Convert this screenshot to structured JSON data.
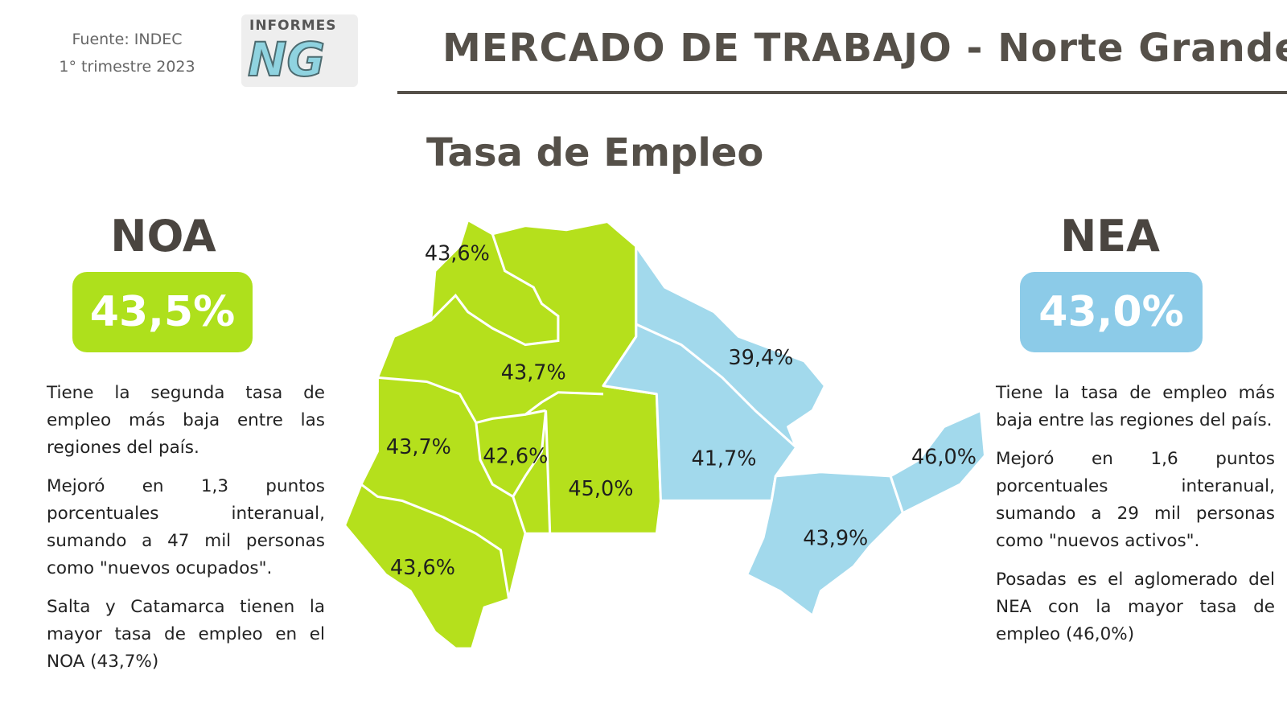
{
  "header": {
    "source": "Fuente: INDEC",
    "period": "1° trimestre 2023",
    "logo_text": "INFORMES",
    "logo_mark": "NG",
    "title": "MERCADO DE TRABAJO - Norte Grande"
  },
  "subtitle": "Tasa de Empleo",
  "noa": {
    "name": "NOA",
    "rate": "43,5%",
    "paragraphs": [
      "Tiene la segunda tasa de empleo más baja entre las regiones del país.",
      "Mejoró en 1,3 puntos porcentuales interanual, sumando a 47 mil personas como \"nuevos ocupados\".",
      "Salta y Catamarca tienen la mayor tasa de empleo en el NOA (43,7%)"
    ]
  },
  "nea": {
    "name": "NEA",
    "rate": "43,0%",
    "paragraphs": [
      "Tiene la tasa de empleo más baja entre las regiones del país.",
      "Mejoró en 1,6 puntos porcentuales interanual, sumando a 29 mil personas como \"nuevos activos\".",
      "Posadas es el aglomerado del NEA con la mayor tasa de empleo (46,0%)"
    ]
  },
  "map": {
    "labels": [
      "43,6%",
      "43,7%",
      "43,7%",
      "42,6%",
      "45,0%",
      "43,6%",
      "39,4%",
      "41,7%",
      "46,0%",
      "43,9%"
    ]
  }
}
